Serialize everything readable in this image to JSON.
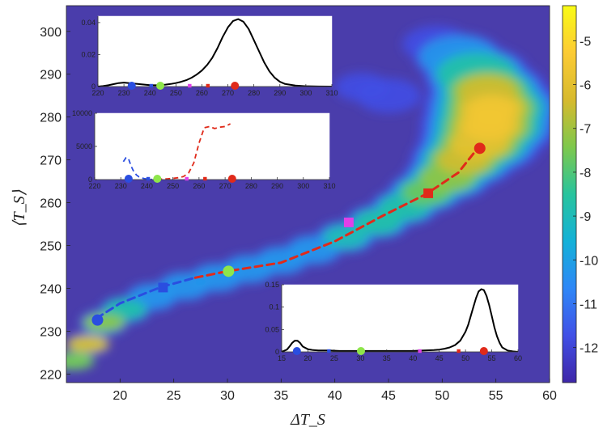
{
  "chart_data": [
    {
      "type": "heatmap",
      "title": "",
      "xlabel": "ΔT_S",
      "ylabel": "⟨T_S⟩",
      "xlim": [
        15,
        60
      ],
      "ylim": [
        218,
        306
      ],
      "xticks": [
        20,
        25,
        30,
        35,
        40,
        45,
        50,
        55,
        60
      ],
      "yticks": [
        220,
        230,
        240,
        250,
        260,
        270,
        280,
        290,
        300
      ],
      "background_color": "#4a3dab",
      "colorbar": {
        "range": [
          -12.8,
          -4.2
        ],
        "ticks": [
          -5,
          -6,
          -7,
          -8,
          -9,
          -10,
          -11,
          -12
        ],
        "colormap": [
          "#3e26a8",
          "#4150e6",
          "#2e87f7",
          "#13b1d8",
          "#28c49d",
          "#7ec84c",
          "#d7ba2d",
          "#fccb34",
          "#f9fb15"
        ]
      },
      "ridge": [
        {
          "x": 15.6,
          "y": 223,
          "w": 1.6,
          "v": 0.62
        },
        {
          "x": 17.0,
          "y": 227,
          "w": 2.0,
          "v": 0.75
        },
        {
          "x": 18.5,
          "y": 232,
          "w": 2.3,
          "v": 0.66
        },
        {
          "x": 20.5,
          "y": 235,
          "w": 2.4,
          "v": 0.5
        },
        {
          "x": 23.0,
          "y": 238,
          "w": 2.5,
          "v": 0.4
        },
        {
          "x": 26.0,
          "y": 240.5,
          "w": 2.6,
          "v": 0.38
        },
        {
          "x": 29.0,
          "y": 242.5,
          "w": 2.6,
          "v": 0.4
        },
        {
          "x": 32.0,
          "y": 244.5,
          "w": 2.6,
          "v": 0.38
        },
        {
          "x": 35.0,
          "y": 246.5,
          "w": 2.6,
          "v": 0.38
        },
        {
          "x": 38.0,
          "y": 249,
          "w": 2.7,
          "v": 0.4
        },
        {
          "x": 41.0,
          "y": 252,
          "w": 2.8,
          "v": 0.45
        },
        {
          "x": 44.0,
          "y": 255.5,
          "w": 3.0,
          "v": 0.5
        },
        {
          "x": 46.5,
          "y": 259,
          "w": 3.2,
          "v": 0.55
        },
        {
          "x": 48.5,
          "y": 262.5,
          "w": 3.6,
          "v": 0.6
        },
        {
          "x": 50.5,
          "y": 266,
          "w": 4.2,
          "v": 0.68
        },
        {
          "x": 52.0,
          "y": 270,
          "w": 5.0,
          "v": 0.74
        },
        {
          "x": 53.5,
          "y": 274,
          "w": 5.8,
          "v": 0.8
        },
        {
          "x": 54.3,
          "y": 278,
          "w": 6.4,
          "v": 0.84
        },
        {
          "x": 54.6,
          "y": 282,
          "w": 6.4,
          "v": 0.84
        },
        {
          "x": 54.2,
          "y": 286,
          "w": 5.6,
          "v": 0.74
        },
        {
          "x": 53.2,
          "y": 290,
          "w": 5.0,
          "v": 0.55
        },
        {
          "x": 51.5,
          "y": 294,
          "w": 4.2,
          "v": 0.38
        },
        {
          "x": 49.5,
          "y": 297,
          "w": 3.2,
          "v": 0.2
        }
      ],
      "ridge_branch": [
        {
          "x": 45.0,
          "y": 285,
          "w": 3.0,
          "v": 0.18
        },
        {
          "x": 42.5,
          "y": 287,
          "w": 2.5,
          "v": 0.12
        }
      ],
      "mean_curve": [
        {
          "x": 17.8,
          "y": 233,
          "color": "#2a4ee0"
        },
        {
          "x": 20.0,
          "y": 236.5,
          "color": "#2a4ee0"
        },
        {
          "x": 23.8,
          "y": 240.3,
          "color": "#2a4ee0"
        },
        {
          "x": 27.0,
          "y": 242.5,
          "color": "#2a4ee0"
        },
        {
          "x": 30.0,
          "y": 244,
          "color": "#e02a1a"
        },
        {
          "x": 35.0,
          "y": 246,
          "color": "#e02a1a"
        },
        {
          "x": 40.0,
          "y": 251,
          "color": "#e02a1a"
        },
        {
          "x": 44.5,
          "y": 257,
          "color": "#e02a1a"
        },
        {
          "x": 48.5,
          "y": 262,
          "color": "#e02a1a"
        },
        {
          "x": 51.5,
          "y": 267,
          "color": "#e02a1a"
        },
        {
          "x": 53.3,
          "y": 272.7,
          "color": "#e02a1a"
        }
      ],
      "markers": [
        {
          "name": "blue-circle",
          "x": 17.9,
          "y": 232.6,
          "shape": "circle",
          "color": "#2a4ee0"
        },
        {
          "name": "blue-square",
          "x": 24.0,
          "y": 240.2,
          "shape": "square",
          "color": "#2a4ee0"
        },
        {
          "name": "green-circle",
          "x": 30.1,
          "y": 244.0,
          "shape": "circle",
          "color": "#8ee64a"
        },
        {
          "name": "magenta-square",
          "x": 41.3,
          "y": 255.4,
          "shape": "square",
          "color": "#e040e8"
        },
        {
          "name": "red-square",
          "x": 48.7,
          "y": 262.2,
          "shape": "square",
          "color": "#e02a1a"
        },
        {
          "name": "red-circle",
          "x": 53.5,
          "y": 272.7,
          "shape": "circle",
          "color": "#e02a1a"
        }
      ]
    },
    {
      "type": "line",
      "title": "",
      "xlim": [
        220,
        310
      ],
      "ylim": [
        0,
        0.044
      ],
      "xticks": [
        220,
        230,
        240,
        250,
        260,
        270,
        280,
        290,
        300,
        310
      ],
      "yticks": [
        0,
        0.02,
        0.04
      ],
      "ytick_labels": [
        "0",
        "0.02",
        "0.04"
      ],
      "series": [
        {
          "color": "#000000",
          "style": "solid",
          "x": [
            220,
            222,
            224,
            226,
            228,
            230,
            232,
            234,
            236,
            238,
            240,
            242,
            244,
            246,
            248,
            250,
            252,
            254,
            256,
            258,
            260,
            262,
            264,
            266,
            268,
            270,
            272,
            274,
            276,
            278,
            280,
            282,
            284,
            286,
            288,
            290,
            292,
            296,
            300,
            305,
            310
          ],
          "y": [
            0,
            0.0003,
            0.0008,
            0.0015,
            0.0022,
            0.0025,
            0.0022,
            0.0018,
            0.0015,
            0.0012,
            0.0009,
            0.0008,
            0.0009,
            0.0012,
            0.0016,
            0.0022,
            0.003,
            0.004,
            0.0055,
            0.0075,
            0.01,
            0.0135,
            0.018,
            0.024,
            0.031,
            0.037,
            0.041,
            0.0422,
            0.0405,
            0.036,
            0.029,
            0.022,
            0.015,
            0.0095,
            0.0055,
            0.003,
            0.0016,
            0.0006,
            0.0002,
            5e-05,
            0
          ]
        }
      ],
      "markers": [
        {
          "x": 233,
          "shape": "circle",
          "color": "#2a4ee0"
        },
        {
          "x": 240.5,
          "shape": "square",
          "color": "#2a4ee0"
        },
        {
          "x": 244,
          "shape": "circle",
          "color": "#8ee64a"
        },
        {
          "x": 255.3,
          "shape": "square",
          "color": "#e040e8"
        },
        {
          "x": 262.3,
          "shape": "square",
          "color": "#e02a1a"
        },
        {
          "x": 272.7,
          "shape": "circle",
          "color": "#e02a1a"
        }
      ]
    },
    {
      "type": "line",
      "title": "",
      "xlim": [
        220,
        310
      ],
      "ylim": [
        0,
        10000
      ],
      "xticks": [
        220,
        230,
        240,
        250,
        260,
        270,
        280,
        290,
        300,
        310
      ],
      "yticks": [
        0,
        5000,
        10000
      ],
      "ytick_labels": [
        "0",
        "5000",
        "10000"
      ],
      "series": [
        {
          "color": "#2a4ee0",
          "style": "dashed",
          "x": [
            231,
            232,
            233,
            234,
            235,
            236,
            237,
            238,
            239,
            240,
            241,
            242
          ],
          "y": [
            2700,
            3300,
            3100,
            2000,
            1200,
            700,
            400,
            250,
            150,
            80,
            40,
            20
          ]
        },
        {
          "color": "#e02a1a",
          "style": "dashed",
          "x": [
            244,
            246,
            248,
            250,
            252,
            254,
            256,
            258,
            260,
            262,
            264,
            266,
            268,
            270,
            272
          ],
          "y": [
            50,
            80,
            120,
            180,
            280,
            450,
            1000,
            2500,
            5500,
            7800,
            8000,
            7700,
            7900,
            8000,
            8400
          ]
        }
      ],
      "markers": [
        {
          "x": 233,
          "shape": "circle",
          "color": "#2a4ee0"
        },
        {
          "x": 240.5,
          "shape": "square",
          "color": "#2a4ee0"
        },
        {
          "x": 244,
          "shape": "circle",
          "color": "#8ee64a"
        },
        {
          "x": 255.3,
          "shape": "square",
          "color": "#e040e8"
        },
        {
          "x": 262.3,
          "shape": "square",
          "color": "#e02a1a"
        },
        {
          "x": 272.7,
          "shape": "circle",
          "color": "#e02a1a"
        }
      ]
    },
    {
      "type": "line",
      "title": "",
      "xlim": [
        15,
        60
      ],
      "ylim": [
        0,
        0.15
      ],
      "xticks": [
        15,
        20,
        25,
        30,
        35,
        40,
        45,
        50,
        55,
        60
      ],
      "yticks": [
        0,
        0.05,
        0.1,
        0.15
      ],
      "ytick_labels": [
        "0",
        "0.05",
        "0.1",
        "0.15"
      ],
      "series": [
        {
          "color": "#000000",
          "style": "solid",
          "x": [
            15,
            16,
            16.5,
            17,
            17.5,
            18,
            18.5,
            19,
            20,
            21,
            22,
            24,
            26,
            28,
            30,
            32,
            34,
            36,
            38,
            40,
            42,
            44,
            45,
            46,
            47,
            48,
            49,
            50,
            50.5,
            51,
            51.5,
            52,
            52.5,
            53,
            53.5,
            54,
            54.5,
            55,
            55.5,
            56,
            56.5,
            57,
            58,
            59,
            60
          ],
          "y": [
            0,
            0.005,
            0.012,
            0.02,
            0.025,
            0.025,
            0.02,
            0.012,
            0.006,
            0.004,
            0.003,
            0.003,
            0.002,
            0.002,
            0.002,
            0.002,
            0.002,
            0.002,
            0.002,
            0.002,
            0.003,
            0.004,
            0.005,
            0.007,
            0.01,
            0.015,
            0.025,
            0.045,
            0.06,
            0.08,
            0.1,
            0.12,
            0.135,
            0.14,
            0.138,
            0.125,
            0.105,
            0.08,
            0.055,
            0.035,
            0.02,
            0.01,
            0.003,
            0.001,
            0
          ]
        }
      ],
      "markers": [
        {
          "x": 17.9,
          "shape": "circle",
          "color": "#2a4ee0"
        },
        {
          "x": 24,
          "shape": "square",
          "color": "#2a4ee0"
        },
        {
          "x": 30.1,
          "shape": "circle",
          "color": "#8ee64a"
        },
        {
          "x": 41.3,
          "shape": "square",
          "color": "#e040e8"
        },
        {
          "x": 48.7,
          "shape": "square",
          "color": "#e02a1a"
        },
        {
          "x": 53.5,
          "shape": "circle",
          "color": "#e02a1a"
        }
      ]
    }
  ]
}
